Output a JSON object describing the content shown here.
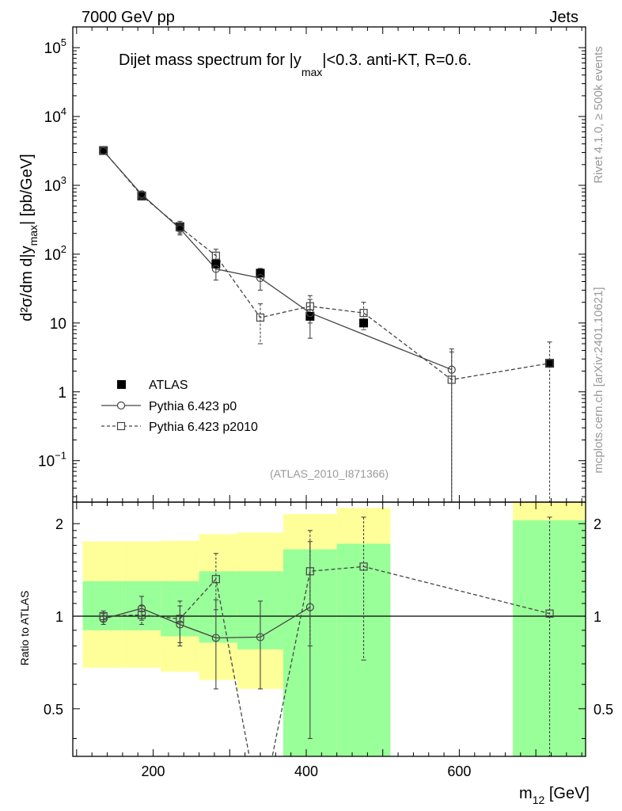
{
  "header": {
    "left": "7000 GeV pp",
    "right": "Jets"
  },
  "side_text": {
    "top": "Rivet 4.1.0, ≥ 500k events",
    "bottom": "mcplots.cern.ch [arXiv:2401.10621]"
  },
  "analysis_id": "(ATLAS_2010_I871366)",
  "legend": {
    "atlas": "ATLAS",
    "p0": "Pythia 6.423 p0",
    "p2010": "Pythia 6.423 p2010"
  },
  "chart_data": {
    "type": "scatter",
    "title_pre": "Dijet mass spectrum for |y",
    "title_sub": "max",
    "title_post": "|<0.3.  anti-KT, R=0.6.",
    "ylabel_pre": "d²σ/dm d|y",
    "ylabel_sub": "max",
    "ylabel_post": "| [pb/GeV]",
    "ratio_ylabel": "Ratio to ATLAS",
    "xlabel_pre": "m",
    "xlabel_sub": "12",
    "xlabel_post": " [GeV]",
    "xlim": [
      95,
      765
    ],
    "ylim_log": [
      0.025,
      200000
    ],
    "ratio_ylim": [
      0.35,
      2.35
    ],
    "x_ticks": [
      {
        "v": 200,
        "label": "200"
      },
      {
        "v": 400,
        "label": "400"
      },
      {
        "v": 600,
        "label": "600"
      }
    ],
    "y_ticks_main": [
      {
        "v": 0.1,
        "base": "10",
        "exp": "−1"
      },
      {
        "v": 1,
        "base": "1",
        "exp": ""
      },
      {
        "v": 10,
        "base": "10",
        "exp": ""
      },
      {
        "v": 100,
        "base": "10",
        "exp": "2"
      },
      {
        "v": 1000,
        "base": "10",
        "exp": "3"
      },
      {
        "v": 10000,
        "base": "10",
        "exp": "4"
      },
      {
        "v": 100000,
        "base": "10",
        "exp": "5"
      }
    ],
    "ratio_ticks": [
      {
        "v": 0.5,
        "label": "0.5"
      },
      {
        "v": 1,
        "label": "1"
      },
      {
        "v": 2,
        "label": "2"
      }
    ],
    "atlas": [
      {
        "x": 135,
        "y": 3200
      },
      {
        "x": 185,
        "y": 700
      },
      {
        "x": 235,
        "y": 250
      },
      {
        "x": 282,
        "y": 72
      },
      {
        "x": 340,
        "y": 53
      },
      {
        "x": 405,
        "y": 12.5
      },
      {
        "x": 475,
        "y": 10
      },
      {
        "x": 718,
        "y": 2.6
      }
    ],
    "p0": [
      {
        "x": 135,
        "y": 3150,
        "lo": 2950,
        "hi": 3350
      },
      {
        "x": 185,
        "y": 740,
        "lo": 650,
        "hi": 820
      },
      {
        "x": 235,
        "y": 235,
        "lo": 190,
        "hi": 280
      },
      {
        "x": 282,
        "y": 61,
        "lo": 42,
        "hi": 82
      },
      {
        "x": 340,
        "y": 45,
        "lo": 30,
        "hi": 62
      },
      {
        "x": 405,
        "y": 14,
        "lo": 6,
        "hi": 22
      },
      {
        "x": 590,
        "y": 2.1,
        "lo": 0.02,
        "hi": 4.2
      }
    ],
    "p2010": [
      {
        "x": 135,
        "y": 3200,
        "lo": 3000,
        "hi": 3400
      },
      {
        "x": 185,
        "y": 710,
        "lo": 640,
        "hi": 790
      },
      {
        "x": 235,
        "y": 245,
        "lo": 200,
        "hi": 300
      },
      {
        "x": 282,
        "y": 95,
        "lo": 75,
        "hi": 118
      },
      {
        "x": 340,
        "y": 12,
        "lo": 5,
        "hi": 19
      },
      {
        "x": 405,
        "y": 17.5,
        "lo": 10,
        "hi": 25
      },
      {
        "x": 475,
        "y": 14,
        "lo": 8,
        "hi": 20
      },
      {
        "x": 590,
        "y": 1.5,
        "lo": 0.02,
        "hi": 3.8
      },
      {
        "x": 718,
        "y": 2.6,
        "lo": 0.02,
        "hi": 5.3
      }
    ],
    "ratio_p0": [
      {
        "x": 135,
        "y": 0.98,
        "lo": 0.94,
        "hi": 1.02
      },
      {
        "x": 185,
        "y": 1.06,
        "lo": 0.97,
        "hi": 1.16
      },
      {
        "x": 235,
        "y": 0.94,
        "lo": 0.8,
        "hi": 1.08
      },
      {
        "x": 282,
        "y": 0.85,
        "lo": 0.58,
        "hi": 1.13
      },
      {
        "x": 340,
        "y": 0.855,
        "lo": 0.58,
        "hi": 1.12
      },
      {
        "x": 405,
        "y": 1.07,
        "lo": 0.4,
        "hi": 1.75
      }
    ],
    "ratio_p2010": [
      {
        "x": 135,
        "y": 1.0,
        "lo": 0.96,
        "hi": 1.04
      },
      {
        "x": 185,
        "y": 1.01,
        "lo": 0.94,
        "hi": 1.08
      },
      {
        "x": 235,
        "y": 0.98,
        "lo": 0.82,
        "hi": 1.12
      },
      {
        "x": 282,
        "y": 1.32,
        "lo": 1.05,
        "hi": 1.6
      },
      {
        "x": 340,
        "y": 0.226,
        "lo": 0.1,
        "hi": 0.36
      },
      {
        "x": 405,
        "y": 1.4,
        "lo": 0.8,
        "hi": 1.9
      },
      {
        "x": 475,
        "y": 1.45,
        "lo": 0.72,
        "hi": 2.1
      },
      {
        "x": 718,
        "y": 1.02,
        "lo": 0.3,
        "hi": 2.1
      }
    ],
    "bands": [
      {
        "x0": 108,
        "x1": 160,
        "y_lo": 0.68,
        "y_hi": 1.75,
        "g_lo": 0.9,
        "g_hi": 1.3
      },
      {
        "x0": 160,
        "x1": 210,
        "y_lo": 0.68,
        "y_hi": 1.75,
        "g_lo": 0.9,
        "g_hi": 1.3
      },
      {
        "x0": 210,
        "x1": 260,
        "y_lo": 0.66,
        "y_hi": 1.76,
        "g_lo": 0.86,
        "g_hi": 1.3
      },
      {
        "x0": 260,
        "x1": 310,
        "y_lo": 0.62,
        "y_hi": 1.85,
        "g_lo": 0.82,
        "g_hi": 1.4
      },
      {
        "x0": 310,
        "x1": 370,
        "y_lo": 0.58,
        "y_hi": 1.87,
        "g_lo": 0.78,
        "g_hi": 1.4
      },
      {
        "x0": 370,
        "x1": 440,
        "y_lo": 0.3,
        "y_hi": 2.15,
        "g_lo": 0.3,
        "g_hi": 1.65
      },
      {
        "x0": 440,
        "x1": 510,
        "y_lo": 0.3,
        "y_hi": 2.25,
        "g_lo": 0.3,
        "g_hi": 1.72
      },
      {
        "x0": 670,
        "x1": 765,
        "y_lo": 0.3,
        "y_hi": 2.7,
        "g_lo": 0.3,
        "g_hi": 2.05
      }
    ],
    "colors": {
      "yellow": "#ffff99",
      "green": "#99ff99",
      "p0": "#444444",
      "p2010": "#444444",
      "atlas": "#000000"
    }
  }
}
